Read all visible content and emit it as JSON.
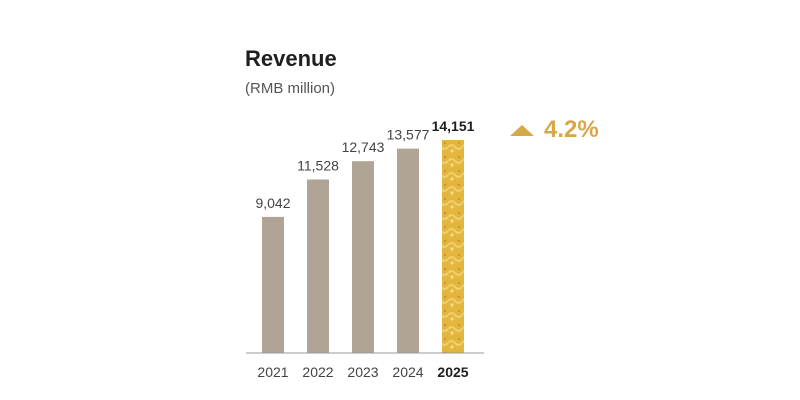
{
  "chart_data": {
    "type": "bar",
    "title": "Revenue",
    "subtitle": "(RMB million)",
    "categories": [
      "2021",
      "2022",
      "2023",
      "2024",
      "2025"
    ],
    "values": [
      9042,
      11528,
      12743,
      13577,
      14151
    ],
    "value_labels": [
      "9,042",
      "11,528",
      "12,743",
      "13,577",
      "14,151"
    ],
    "highlight_category": "2025",
    "ylim": [
      0,
      14151
    ],
    "grid": false,
    "xlabel": "",
    "ylabel": "",
    "colors": {
      "bar": "#b0a496",
      "highlight": "#e3b63f",
      "highlight_stroke": "#f1cf6b",
      "baseline": "#9a9a9a"
    },
    "annotation": {
      "label": "4.2%",
      "icon": "up-triangle-icon",
      "color": "#d5a84a"
    }
  }
}
